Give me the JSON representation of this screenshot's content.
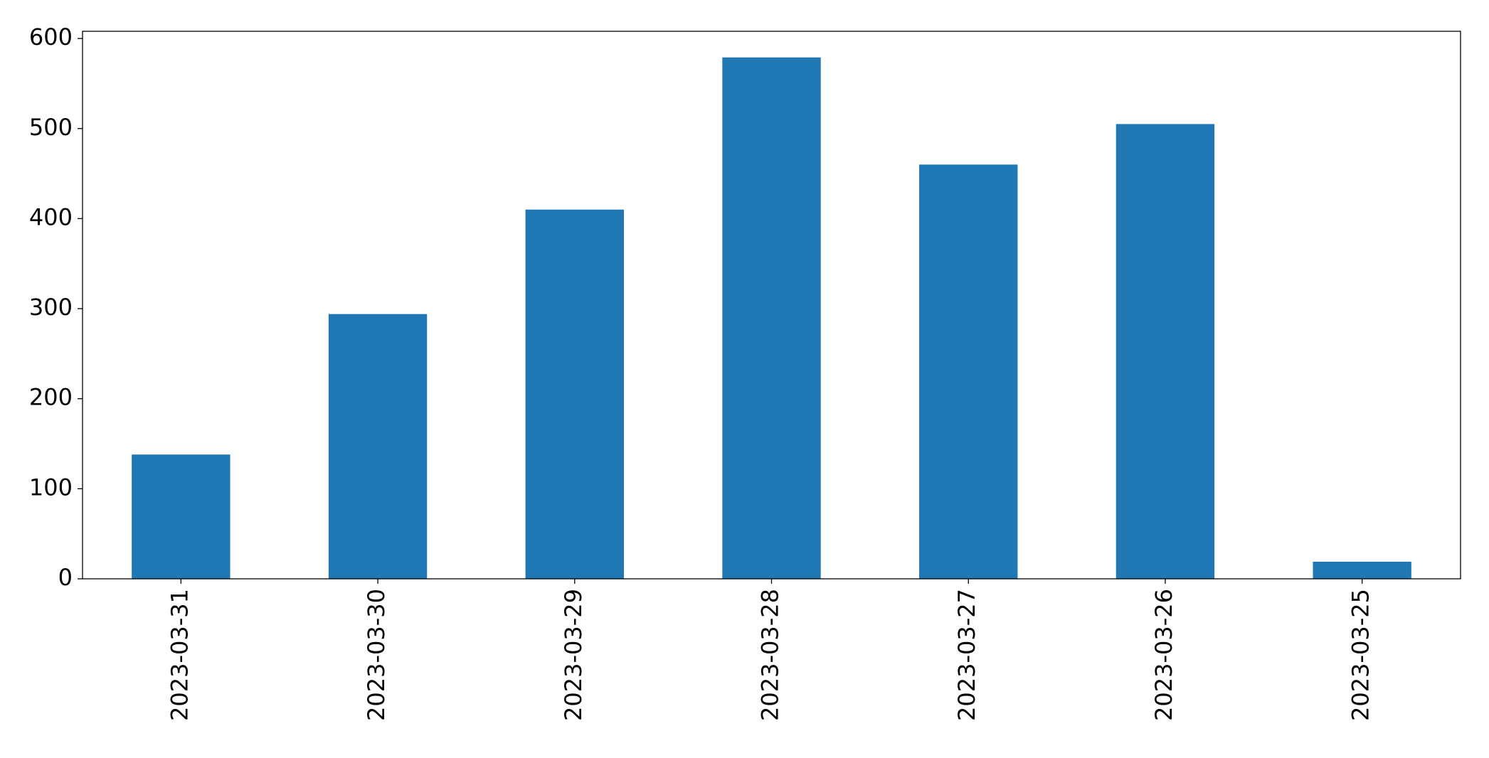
{
  "chart_data": {
    "type": "bar",
    "categories": [
      "2023-03-31",
      "2023-03-30",
      "2023-03-29",
      "2023-03-28",
      "2023-03-27",
      "2023-03-26",
      "2023-03-25"
    ],
    "values": [
      138,
      294,
      410,
      579,
      460,
      505,
      19
    ],
    "color": "#1f77b4",
    "ylim": [
      0,
      608
    ],
    "yticks": [
      0,
      100,
      200,
      300,
      400,
      500,
      600
    ],
    "grid": false
  }
}
